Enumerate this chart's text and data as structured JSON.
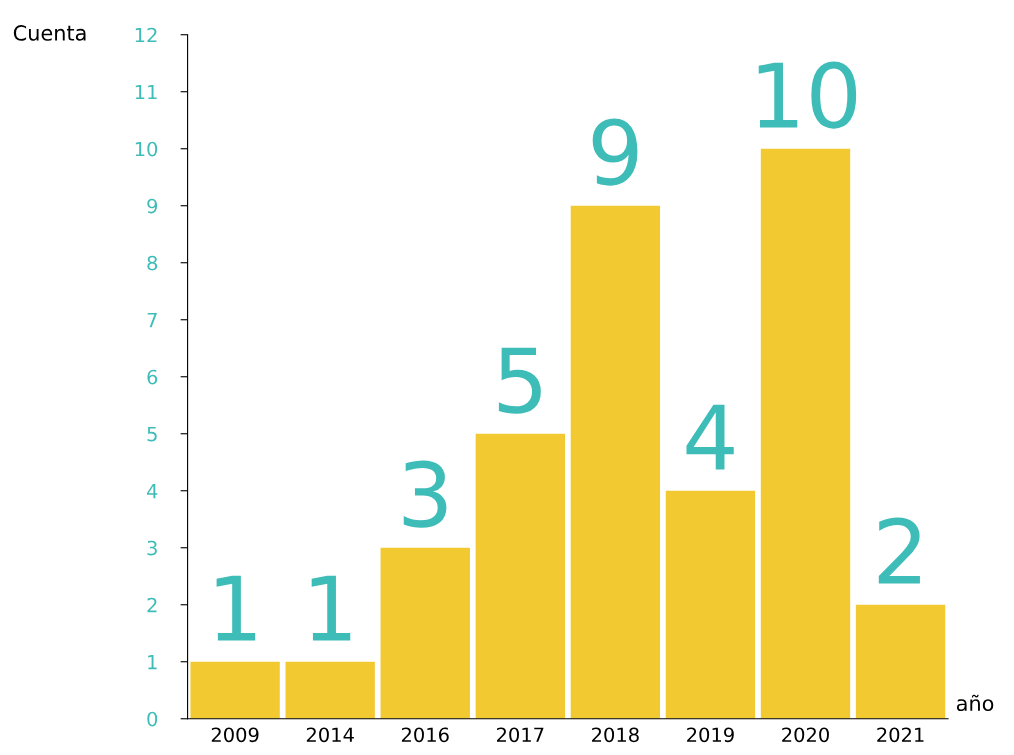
{
  "chart_data": {
    "type": "bar",
    "xlabel": "año",
    "ylabel": "Cuenta",
    "categories": [
      "2009",
      "2014",
      "2016",
      "2017",
      "2018",
      "2019",
      "2020",
      "2021"
    ],
    "values": [
      1,
      1,
      3,
      5,
      9,
      4,
      10,
      2
    ],
    "color": "#f2c930",
    "ylim": [
      0,
      12
    ],
    "yticks": [
      0,
      1,
      2,
      3,
      4,
      5,
      6,
      7,
      8,
      9,
      10,
      11,
      12
    ],
    "data_labels": true,
    "grid": false,
    "legend": false
  }
}
